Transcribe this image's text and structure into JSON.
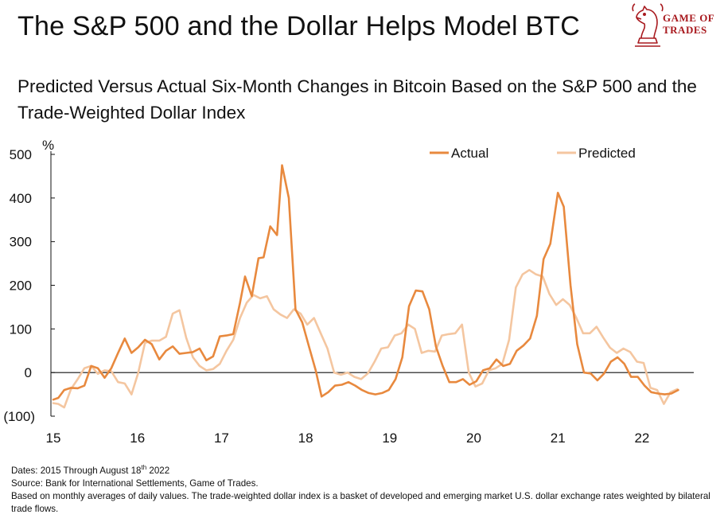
{
  "header": {
    "title": "The S&P 500 and the Dollar Helps Model BTC",
    "subtitle": "Predicted Versus Actual Six-Month Changes in Bitcoin Based on the S&P 500 and the Trade-Weighted Dollar Index"
  },
  "logo": {
    "line1": "GAME OF",
    "line2": "TRADES",
    "icon": "knight-chess-icon",
    "color": "#a8191e"
  },
  "footer": {
    "dates_prefix": "Dates: 2015 Through  August 18",
    "dates_sup": "th",
    "dates_suffix": " 2022",
    "source": "Source: Bank for International  Settlements, Game of Trades.",
    "note": "Based on monthly  averages of daily values. The trade-weighted dollar index is a basket of developed and emerging market U.S. dollar exchange rates weighted by bilateral trade flows."
  },
  "chart_data": {
    "type": "line",
    "unit_label": "%",
    "ylim": [
      -100,
      500
    ],
    "xlim": [
      2015,
      2022.62
    ],
    "y_ticks": [
      {
        "value": 500,
        "label": "500"
      },
      {
        "value": 400,
        "label": "400"
      },
      {
        "value": 300,
        "label": "300"
      },
      {
        "value": 200,
        "label": "200"
      },
      {
        "value": 100,
        "label": "100"
      },
      {
        "value": 0,
        "label": "0"
      },
      {
        "value": -100,
        "label": "(100)"
      }
    ],
    "x_ticks": [
      {
        "value": 2015,
        "label": "15"
      },
      {
        "value": 2016,
        "label": "16"
      },
      {
        "value": 2017,
        "label": "17"
      },
      {
        "value": 2018,
        "label": "18"
      },
      {
        "value": 2019,
        "label": "19"
      },
      {
        "value": 2020,
        "label": "20"
      },
      {
        "value": 2021,
        "label": "21"
      },
      {
        "value": 2022,
        "label": "22"
      }
    ],
    "legend_position": "top-right",
    "grid": false,
    "series": [
      {
        "name": "Actual",
        "color": "#e8893e",
        "points": [
          [
            2015.0,
            -62
          ],
          [
            2015.06,
            -58
          ],
          [
            2015.13,
            -40
          ],
          [
            2015.21,
            -35
          ],
          [
            2015.29,
            -36
          ],
          [
            2015.37,
            -30
          ],
          [
            2015.45,
            15
          ],
          [
            2015.53,
            10
          ],
          [
            2015.61,
            -12
          ],
          [
            2015.69,
            10
          ],
          [
            2015.77,
            45
          ],
          [
            2015.85,
            78
          ],
          [
            2015.93,
            45
          ],
          [
            2016.01,
            58
          ],
          [
            2016.09,
            75
          ],
          [
            2016.17,
            65
          ],
          [
            2016.26,
            30
          ],
          [
            2016.34,
            50
          ],
          [
            2016.42,
            60
          ],
          [
            2016.5,
            43
          ],
          [
            2016.58,
            45
          ],
          [
            2016.66,
            47
          ],
          [
            2016.74,
            55
          ],
          [
            2016.82,
            28
          ],
          [
            2016.9,
            37
          ],
          [
            2016.98,
            83
          ],
          [
            2017.06,
            85
          ],
          [
            2017.14,
            88
          ],
          [
            2017.22,
            160
          ],
          [
            2017.28,
            220
          ],
          [
            2017.36,
            175
          ],
          [
            2017.44,
            262
          ],
          [
            2017.5,
            264
          ],
          [
            2017.58,
            335
          ],
          [
            2017.66,
            315
          ],
          [
            2017.72,
            475
          ],
          [
            2017.8,
            400
          ],
          [
            2017.88,
            145
          ],
          [
            2017.96,
            115
          ],
          [
            2018.04,
            60
          ],
          [
            2018.12,
            5
          ],
          [
            2018.19,
            -55
          ],
          [
            2018.27,
            -45
          ],
          [
            2018.35,
            -30
          ],
          [
            2018.43,
            -28
          ],
          [
            2018.51,
            -22
          ],
          [
            2018.59,
            -30
          ],
          [
            2018.67,
            -40
          ],
          [
            2018.75,
            -47
          ],
          [
            2018.83,
            -50
          ],
          [
            2018.91,
            -47
          ],
          [
            2018.99,
            -40
          ],
          [
            2019.07,
            -15
          ],
          [
            2019.15,
            35
          ],
          [
            2019.23,
            152
          ],
          [
            2019.31,
            188
          ],
          [
            2019.39,
            186
          ],
          [
            2019.47,
            145
          ],
          [
            2019.55,
            60
          ],
          [
            2019.63,
            15
          ],
          [
            2019.71,
            -22
          ],
          [
            2019.79,
            -22
          ],
          [
            2019.87,
            -15
          ],
          [
            2019.95,
            -28
          ],
          [
            2020.03,
            -20
          ],
          [
            2020.11,
            5
          ],
          [
            2020.19,
            10
          ],
          [
            2020.27,
            30
          ],
          [
            2020.35,
            15
          ],
          [
            2020.43,
            20
          ],
          [
            2020.51,
            50
          ],
          [
            2020.59,
            62
          ],
          [
            2020.67,
            78
          ],
          [
            2020.75,
            130
          ],
          [
            2020.83,
            260
          ],
          [
            2020.91,
            295
          ],
          [
            2021.0,
            412
          ],
          [
            2021.07,
            380
          ],
          [
            2021.15,
            200
          ],
          [
            2021.23,
            65
          ],
          [
            2021.31,
            0
          ],
          [
            2021.39,
            -2
          ],
          [
            2021.47,
            -18
          ],
          [
            2021.55,
            -2
          ],
          [
            2021.63,
            25
          ],
          [
            2021.71,
            35
          ],
          [
            2021.79,
            20
          ],
          [
            2021.87,
            -10
          ],
          [
            2021.95,
            -10
          ],
          [
            2022.03,
            -30
          ],
          [
            2022.11,
            -45
          ],
          [
            2022.19,
            -48
          ],
          [
            2022.27,
            -50
          ],
          [
            2022.35,
            -48
          ],
          [
            2022.43,
            -40
          ]
        ]
      },
      {
        "name": "Predicted",
        "color": "#f4c6a0",
        "points": [
          [
            2015.0,
            -70
          ],
          [
            2015.06,
            -72
          ],
          [
            2015.13,
            -80
          ],
          [
            2015.21,
            -38
          ],
          [
            2015.29,
            -15
          ],
          [
            2015.37,
            10
          ],
          [
            2015.45,
            15
          ],
          [
            2015.53,
            -3
          ],
          [
            2015.61,
            5
          ],
          [
            2015.69,
            3
          ],
          [
            2015.77,
            -22
          ],
          [
            2015.85,
            -25
          ],
          [
            2015.93,
            -50
          ],
          [
            2016.01,
            0
          ],
          [
            2016.09,
            68
          ],
          [
            2016.17,
            73
          ],
          [
            2016.26,
            73
          ],
          [
            2016.34,
            82
          ],
          [
            2016.42,
            135
          ],
          [
            2016.5,
            143
          ],
          [
            2016.58,
            80
          ],
          [
            2016.66,
            35
          ],
          [
            2016.74,
            15
          ],
          [
            2016.82,
            5
          ],
          [
            2016.9,
            8
          ],
          [
            2016.98,
            20
          ],
          [
            2017.06,
            50
          ],
          [
            2017.14,
            75
          ],
          [
            2017.22,
            125
          ],
          [
            2017.3,
            160
          ],
          [
            2017.38,
            178
          ],
          [
            2017.46,
            170
          ],
          [
            2017.54,
            175
          ],
          [
            2017.62,
            145
          ],
          [
            2017.7,
            133
          ],
          [
            2017.78,
            125
          ],
          [
            2017.86,
            145
          ],
          [
            2017.94,
            135
          ],
          [
            2018.02,
            110
          ],
          [
            2018.1,
            125
          ],
          [
            2018.18,
            90
          ],
          [
            2018.26,
            55
          ],
          [
            2018.34,
            0
          ],
          [
            2018.42,
            -5
          ],
          [
            2018.5,
            0
          ],
          [
            2018.58,
            -10
          ],
          [
            2018.66,
            -15
          ],
          [
            2018.74,
            -2
          ],
          [
            2018.82,
            25
          ],
          [
            2018.9,
            55
          ],
          [
            2018.98,
            58
          ],
          [
            2019.06,
            85
          ],
          [
            2019.14,
            90
          ],
          [
            2019.22,
            110
          ],
          [
            2019.3,
            100
          ],
          [
            2019.38,
            45
          ],
          [
            2019.46,
            50
          ],
          [
            2019.54,
            48
          ],
          [
            2019.62,
            85
          ],
          [
            2019.7,
            88
          ],
          [
            2019.78,
            90
          ],
          [
            2019.86,
            110
          ],
          [
            2019.94,
            0
          ],
          [
            2020.02,
            -32
          ],
          [
            2020.1,
            -25
          ],
          [
            2020.18,
            5
          ],
          [
            2020.26,
            10
          ],
          [
            2020.34,
            20
          ],
          [
            2020.42,
            75
          ],
          [
            2020.5,
            195
          ],
          [
            2020.58,
            225
          ],
          [
            2020.66,
            235
          ],
          [
            2020.74,
            225
          ],
          [
            2020.82,
            220
          ],
          [
            2020.9,
            180
          ],
          [
            2020.98,
            155
          ],
          [
            2021.06,
            168
          ],
          [
            2021.14,
            155
          ],
          [
            2021.22,
            125
          ],
          [
            2021.3,
            90
          ],
          [
            2021.38,
            90
          ],
          [
            2021.46,
            105
          ],
          [
            2021.54,
            80
          ],
          [
            2021.62,
            57
          ],
          [
            2021.7,
            45
          ],
          [
            2021.78,
            55
          ],
          [
            2021.86,
            47
          ],
          [
            2021.94,
            25
          ],
          [
            2022.02,
            22
          ],
          [
            2022.1,
            -35
          ],
          [
            2022.18,
            -40
          ],
          [
            2022.26,
            -72
          ],
          [
            2022.34,
            -45
          ],
          [
            2022.42,
            -38
          ]
        ]
      }
    ]
  }
}
